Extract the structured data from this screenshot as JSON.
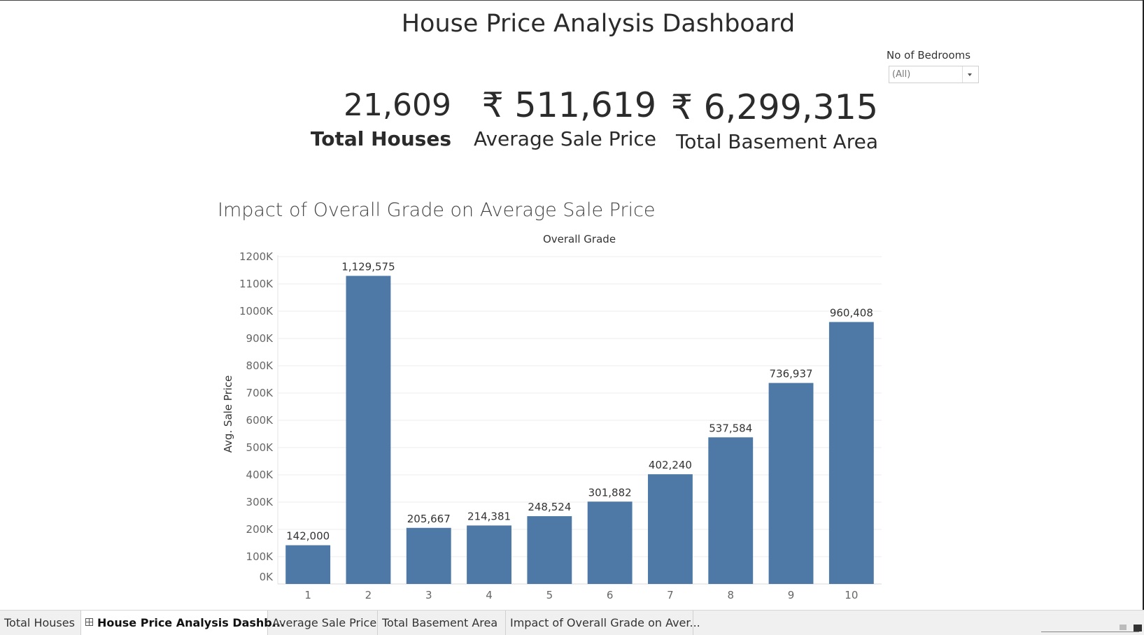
{
  "dashboard": {
    "title": "House Price Analysis Dashboard"
  },
  "filter": {
    "label": "No of Bedrooms",
    "selected": "(All)"
  },
  "kpis": [
    {
      "value": "21,609",
      "label": "Total Houses"
    },
    {
      "value": "₹ 511,619",
      "label": "Average Sale Price"
    },
    {
      "value": "₹ 6,299,315",
      "label": "Total Basement Area"
    }
  ],
  "chart_data": {
    "type": "bar",
    "title": "Impact of Overall Grade on Average Sale Price",
    "xlabel": "Overall Grade",
    "ylabel": "Avg. Sale Price",
    "categories": [
      "1",
      "2",
      "3",
      "4",
      "5",
      "6",
      "7",
      "8",
      "9",
      "10"
    ],
    "values": [
      142000,
      1129575,
      205667,
      214381,
      248524,
      301882,
      402240,
      537584,
      736937,
      960408
    ],
    "data_labels": [
      "142,000",
      "1,129,575",
      "205,667",
      "214,381",
      "248,524",
      "301,882",
      "402,240",
      "537,584",
      "736,937",
      "960,408"
    ],
    "yticks": [
      0,
      100000,
      200000,
      300000,
      400000,
      500000,
      600000,
      700000,
      800000,
      900000,
      1000000,
      1100000,
      1200000
    ],
    "ytick_labels": [
      "0K",
      "100K",
      "200K",
      "300K",
      "400K",
      "500K",
      "600K",
      "700K",
      "800K",
      "900K",
      "1000K",
      "1100K",
      "1200K"
    ],
    "ylim": [
      0,
      1200000
    ],
    "bar_color": "#4e79a7",
    "grid": true
  },
  "tabs": [
    {
      "label": "Total Houses",
      "active": false
    },
    {
      "label": "House Price Analysis Dashb...",
      "active": true
    },
    {
      "label": "Average Sale Price",
      "active": false
    },
    {
      "label": "Total Basement Area",
      "active": false
    },
    {
      "label": "Impact of Overall Grade on Aver...",
      "active": false
    }
  ]
}
